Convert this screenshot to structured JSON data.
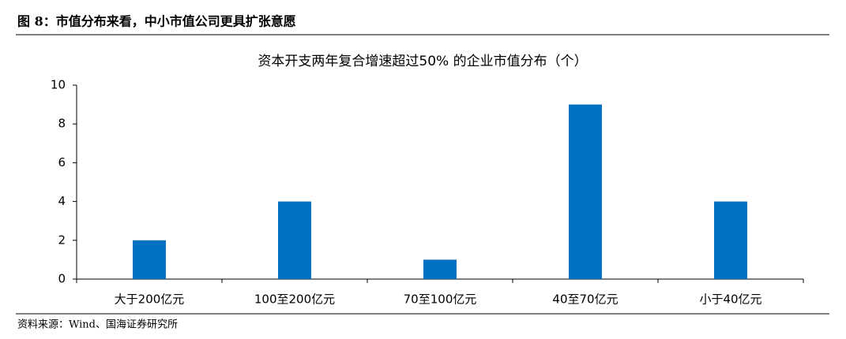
{
  "figure_caption": "图 8：市值分布来看，中小市值公司更具扩张意愿",
  "source": "资料来源：Wind、国海证券研究所",
  "chart_data": {
    "type": "bar",
    "title": "资本开支两年复合增速超过50% 的企业市值分布（个）",
    "categories": [
      "大于200亿元",
      "100至200亿元",
      "70至100亿元",
      "40至70亿元",
      "小于40亿元"
    ],
    "values": [
      2,
      4,
      1,
      9,
      4
    ],
    "color": "#0070c0",
    "ylim": [
      0,
      10
    ],
    "yticks": [
      0,
      2,
      4,
      6,
      8,
      10
    ],
    "grid": false
  }
}
